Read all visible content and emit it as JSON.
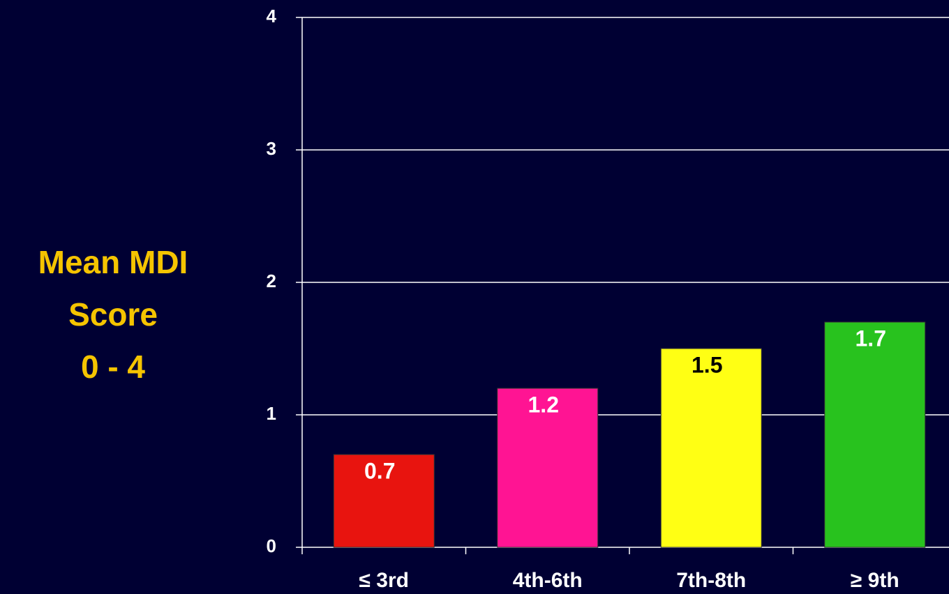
{
  "chart_data": {
    "type": "bar",
    "y_label_lines": [
      "Mean MDI",
      "Score",
      "0 - 4"
    ],
    "categories": [
      "≤ 3rd",
      "4th-6th",
      "7th-8th",
      "≥ 9th"
    ],
    "values": [
      0.7,
      1.2,
      1.5,
      1.7
    ],
    "colors": [
      "#e8140f",
      "#ff1493",
      "#ffff14",
      "#28c21e"
    ],
    "label_colors": [
      "#ffffff",
      "#ffffff",
      "#000000",
      "#ffffff"
    ],
    "ylim": [
      0,
      4
    ],
    "yticks": [
      0,
      1,
      2,
      3,
      4
    ],
    "grid": true
  }
}
